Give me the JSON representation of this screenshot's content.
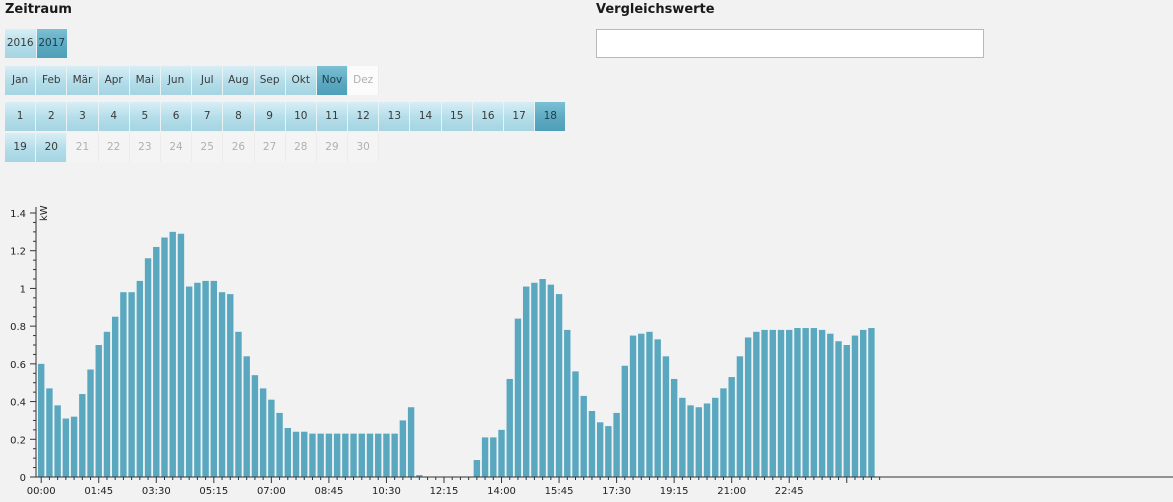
{
  "period": {
    "heading": "Zeitraum"
  },
  "compare": {
    "heading": "Vergleichswerte",
    "input_value": ""
  },
  "years": [
    {
      "label": "2016",
      "state": "normal"
    },
    {
      "label": "2017",
      "state": "selected"
    }
  ],
  "months": [
    {
      "label": "Jan",
      "state": "normal"
    },
    {
      "label": "Feb",
      "state": "normal"
    },
    {
      "label": "Mär",
      "state": "normal"
    },
    {
      "label": "Apr",
      "state": "normal"
    },
    {
      "label": "Mai",
      "state": "normal"
    },
    {
      "label": "Jun",
      "state": "normal"
    },
    {
      "label": "Jul",
      "state": "normal"
    },
    {
      "label": "Aug",
      "state": "normal"
    },
    {
      "label": "Sep",
      "state": "normal"
    },
    {
      "label": "Okt",
      "state": "normal"
    },
    {
      "label": "Nov",
      "state": "selected"
    },
    {
      "label": "Dez",
      "state": "disabled"
    }
  ],
  "days_row1": [
    {
      "label": "1",
      "state": "normal"
    },
    {
      "label": "2",
      "state": "normal"
    },
    {
      "label": "3",
      "state": "normal"
    },
    {
      "label": "4",
      "state": "normal"
    },
    {
      "label": "5",
      "state": "normal"
    },
    {
      "label": "6",
      "state": "normal"
    },
    {
      "label": "7",
      "state": "normal"
    },
    {
      "label": "8",
      "state": "normal"
    },
    {
      "label": "9",
      "state": "normal"
    },
    {
      "label": "10",
      "state": "normal"
    },
    {
      "label": "11",
      "state": "normal"
    },
    {
      "label": "12",
      "state": "normal"
    },
    {
      "label": "13",
      "state": "normal"
    },
    {
      "label": "14",
      "state": "normal"
    },
    {
      "label": "15",
      "state": "normal"
    },
    {
      "label": "16",
      "state": "normal"
    },
    {
      "label": "17",
      "state": "normal"
    },
    {
      "label": "18",
      "state": "selected"
    }
  ],
  "days_row2": [
    {
      "label": "19",
      "state": "normal"
    },
    {
      "label": "20",
      "state": "normal"
    },
    {
      "label": "21",
      "state": "disabled"
    },
    {
      "label": "22",
      "state": "disabled"
    },
    {
      "label": "23",
      "state": "disabled"
    },
    {
      "label": "24",
      "state": "disabled"
    },
    {
      "label": "25",
      "state": "disabled"
    },
    {
      "label": "26",
      "state": "disabled"
    },
    {
      "label": "27",
      "state": "disabled"
    },
    {
      "label": "28",
      "state": "disabled"
    },
    {
      "label": "29",
      "state": "disabled"
    },
    {
      "label": "30",
      "state": "disabled"
    }
  ],
  "colors": {
    "bar": "#5aa8c0",
    "axis": "#333333"
  },
  "chart_data": {
    "type": "bar",
    "ylabel": "kW",
    "ylim": [
      0,
      1.4
    ],
    "yticks": [
      "0",
      "0.2",
      "0.4",
      "0.6",
      "0.8",
      "1",
      "1.2",
      "1.4"
    ],
    "xlabels": [
      "00:00",
      "01:45",
      "03:30",
      "05:15",
      "07:00",
      "08:45",
      "10:30",
      "12:15",
      "14:00",
      "15:45",
      "17:30",
      "19:15",
      "21:00",
      "22:45"
    ],
    "interval_minutes": 15,
    "values": [
      0.6,
      0.47,
      0.38,
      0.31,
      0.32,
      0.44,
      0.57,
      0.7,
      0.77,
      0.85,
      0.98,
      0.98,
      1.04,
      1.16,
      1.22,
      1.27,
      1.3,
      1.29,
      1.01,
      1.03,
      1.04,
      1.04,
      0.98,
      0.97,
      0.77,
      0.64,
      0.54,
      0.47,
      0.41,
      0.34,
      0.26,
      0.24,
      0.24,
      0.23,
      0.23,
      0.23,
      0.23,
      0.23,
      0.23,
      0.23,
      0.23,
      0.23,
      0.23,
      0.23,
      0.3,
      0.37,
      0.01,
      0.0,
      0.0,
      0.0,
      0.0,
      0.0,
      0.0,
      0.09,
      0.21,
      0.21,
      0.25,
      0.52,
      0.84,
      1.01,
      1.03,
      1.05,
      1.02,
      0.97,
      0.78,
      0.56,
      0.43,
      0.35,
      0.29,
      0.27,
      0.34,
      0.59,
      0.75,
      0.76,
      0.77,
      0.73,
      0.64,
      0.52,
      0.42,
      0.38,
      0.37,
      0.39,
      0.42,
      0.47,
      0.53,
      0.64,
      0.74,
      0.77,
      0.78,
      0.78,
      0.78,
      0.78,
      0.79,
      0.79,
      0.79,
      0.78,
      0.76,
      0.72,
      0.7,
      0.75,
      0.78,
      0.79
    ]
  }
}
